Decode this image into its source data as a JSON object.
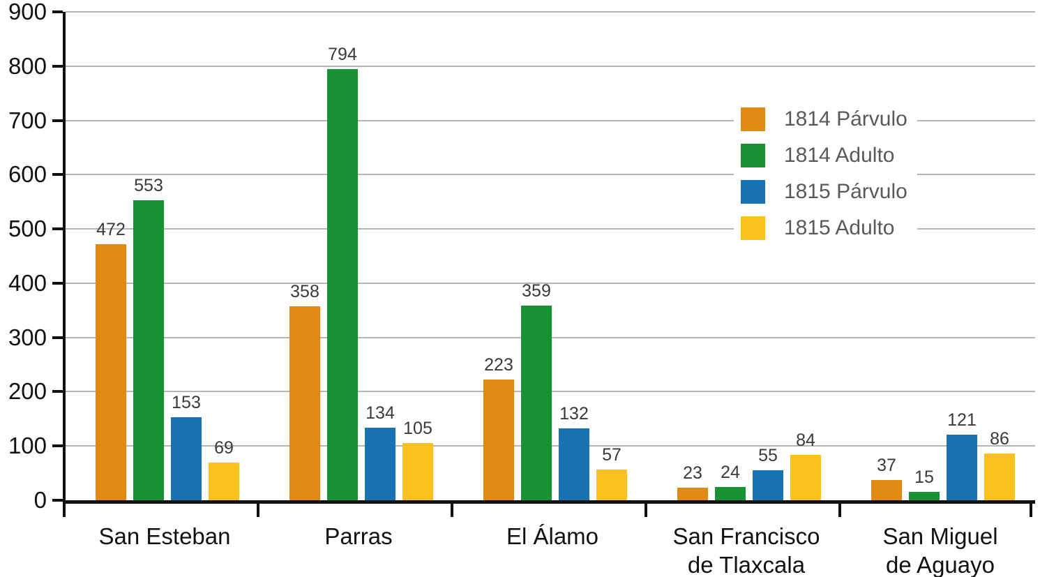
{
  "chart_data": {
    "type": "bar",
    "title": "",
    "xlabel": "",
    "ylabel": "",
    "ylim": [
      0,
      900
    ],
    "ytick_step": 100,
    "grid": true,
    "legend_position": "upper right",
    "categories": [
      {
        "lines": [
          "San Esteban"
        ]
      },
      {
        "lines": [
          "Parras"
        ]
      },
      {
        "lines": [
          "El Álamo"
        ]
      },
      {
        "lines": [
          "San Francisco",
          "de Tlaxcala"
        ]
      },
      {
        "lines": [
          "San Miguel",
          "de Aguayo"
        ]
      }
    ],
    "series": [
      {
        "name": "1814 Párvulo",
        "color": "#e08a14",
        "values": [
          472,
          358,
          223,
          23,
          37
        ]
      },
      {
        "name": "1814 Adulto",
        "color": "#189233",
        "values": [
          553,
          794,
          359,
          24,
          15
        ]
      },
      {
        "name": "1815 Párvulo",
        "color": "#1772b4",
        "values": [
          153,
          134,
          132,
          55,
          121
        ]
      },
      {
        "name": "1815 Adulto",
        "color": "#fbc11e",
        "values": [
          69,
          105,
          57,
          84,
          86
        ]
      }
    ],
    "colors": {
      "axis": "#111111",
      "gridline": "#b5b5b5",
      "value_label": "#3a3a3a",
      "legend_text": "#58595b",
      "background": "#ffffff"
    }
  }
}
